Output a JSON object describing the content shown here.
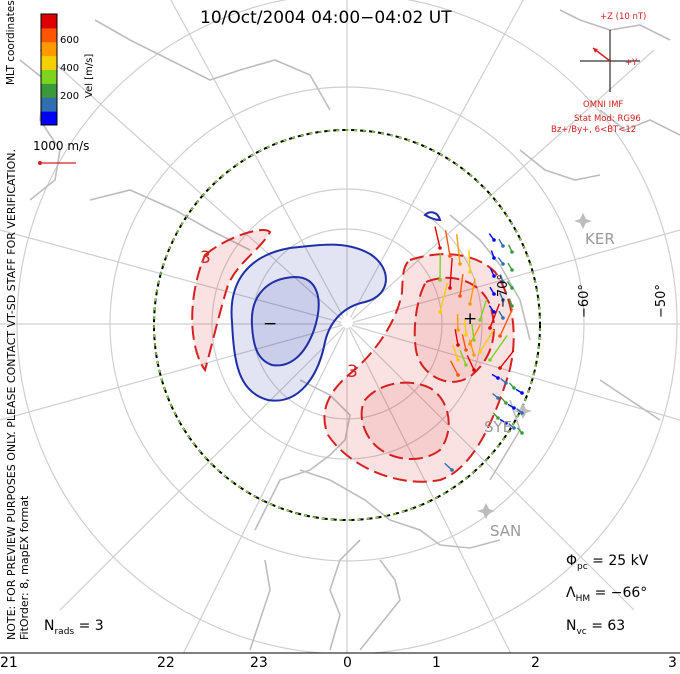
{
  "title": "10/Oct/2004 04:00−04:02 UT",
  "side_notes": {
    "mlt": "MLT coordinates",
    "preview": "NOTE: FOR PREVIEW PURPOSES ONLY. PLEASE CONTACT VT-SD STAFF FOR VERIFICATION.",
    "fitorder": "FitOrder: 8, mapEX format"
  },
  "velocity_scale": {
    "label": "Vel [m/s]",
    "ticks": [
      "600",
      "400",
      "200"
    ],
    "colors": [
      "#0000ff",
      "#2f6fb0",
      "#3a9a3a",
      "#7ed321",
      "#f5d000",
      "#ff9900",
      "#ff5500",
      "#dd0000"
    ],
    "reference_label": "1000 m/s"
  },
  "imf": {
    "z_label": "+Z (10 nT)",
    "y_label": "+Y",
    "source": "OMNI IMF",
    "stat_mod": "Stat Mod: RG96",
    "condition": "Bz+/By+, 6<BT<12"
  },
  "stations": [
    "KER",
    "SYE",
    "SAN"
  ],
  "latitude_labels": [
    "−70°",
    "−60°",
    "−50°"
  ],
  "potential_labels": {
    "plus": "+",
    "minus": "−",
    "contour3_a": "3",
    "contour3_b": "3"
  },
  "stats": {
    "phi_pc": {
      "symbol": "Φ",
      "sub": "pc",
      "value": "= 25 kV"
    },
    "lambda_hm": {
      "symbol": "Λ",
      "sub": "HM",
      "value": "= −66°"
    },
    "n_vc": {
      "symbol": "N",
      "sub": "vc",
      "value": "= 63"
    },
    "n_rads": {
      "symbol": "N",
      "sub": "rads",
      "value": "= 3"
    }
  },
  "mlt_ticks": [
    "21",
    "22",
    "23",
    "0",
    "1",
    "2",
    "3"
  ],
  "colors": {
    "positive_cell": "#d62020",
    "negative_cell": "#1f2fa8",
    "boundary_green": "#88dd44",
    "grid": "#cfcfcf",
    "coast": "#bdbdbd"
  }
}
